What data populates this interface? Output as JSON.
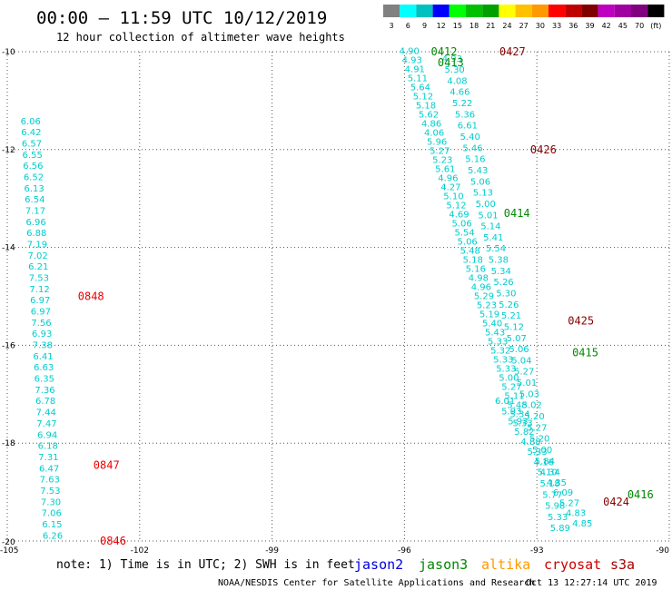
{
  "header": {
    "title": "00:00 – 11:59 UTC 10/12/2019",
    "subtitle": "12 hour collection of altimeter wave heights"
  },
  "colorbar": {
    "colors": [
      "#808080",
      "#00ffff",
      "#00c0c0",
      "#0000ff",
      "#00ff00",
      "#00c000",
      "#00a000",
      "#ffff00",
      "#ffc000",
      "#ff9900",
      "#ff0000",
      "#c00000",
      "#800000",
      "#c000c0",
      "#a000a0",
      "#800080",
      "#000000"
    ],
    "labels": [
      "3",
      "6",
      "9",
      "12",
      "15",
      "18",
      "21",
      "24",
      "27",
      "30",
      "33",
      "36",
      "39",
      "42",
      "45",
      "70",
      "(ft)"
    ]
  },
  "chart_data": {
    "type": "scatter",
    "title": "00:00 – 11:59 UTC 10/12/2019",
    "xlim": [
      -105,
      -90
    ],
    "ylim": [
      -20,
      -10
    ],
    "x_ticks": [
      "-105",
      "-102",
      "-99",
      "-96",
      "-93",
      "-90"
    ],
    "y_ticks": [
      "-10",
      "-12",
      "-14",
      "-16",
      "-18",
      "-20"
    ],
    "grid": true,
    "tracks": [
      {
        "lon_start": -104.7,
        "lon_end": -104.2,
        "values": [
          "6.06",
          "6.42",
          "6.57",
          "6.55",
          "6.56",
          "6.52",
          "6.13",
          "6.54",
          "7.17",
          "6.96",
          "6.88",
          "7.19",
          "7.02",
          "6.21",
          "7.53",
          "7.12",
          "6.97",
          "6.97",
          "7.56",
          "6.93",
          "7.38",
          "6.41",
          "6.63",
          "6.35",
          "7.36",
          "6.78",
          "7.44",
          "7.47",
          "6.94",
          "6.18",
          "7.31",
          "6.47",
          "7.63",
          "7.53",
          "7.30",
          "7.06",
          "6.15",
          "6.26"
        ],
        "lat_start": -11.48,
        "lat_end": -19.95
      },
      {
        "lon_start": -96.12,
        "lon_end": -93.55,
        "values": [
          "4.90",
          "4.93",
          "4.91",
          "5.11",
          "5.64",
          "5.12",
          "5.18",
          "5.62",
          "4.86",
          "4.06",
          "5.96",
          "5.27",
          "5.23",
          "5.61",
          "4.96",
          "4.27",
          "5.10",
          "5.12",
          "4.69",
          "5.06",
          "5.54",
          "5.06",
          "5.48",
          "5.18",
          "5.16",
          "4.98",
          "4.96",
          "5.29",
          "5.23",
          "5.19",
          "5.40",
          "5.43",
          "5.33",
          "5.32",
          "5.33",
          "5.33",
          "5.00",
          "5.27",
          "5.11",
          "5.48",
          "5.34",
          "5.33"
        ],
        "lat_start": -10.05,
        "lat_end": -17.65
      },
      {
        "lon_start": -95.15,
        "lon_end": -92.7,
        "values": [
          "4.93",
          "5.30",
          "4.08",
          "4.66",
          "5.22",
          "5.36",
          "6.61",
          "5.40",
          "5.46",
          "5.16",
          "5.43",
          "5.06",
          "5.13",
          "5.00",
          "5.01",
          "5.14",
          "5.41",
          "5.54",
          "5.38",
          "5.34",
          "5.26",
          "5.30",
          "5.26",
          "5.21",
          "5.12",
          "5.07",
          "5.06",
          "5.04",
          "5.27",
          "5.01",
          "5.03",
          "5.02",
          "5.20",
          "5.27",
          "5.20",
          "5.00",
          "5.84",
          "5.10",
          "5.18",
          "5.77",
          "5.98",
          "5.33",
          "5.89"
        ],
        "lat_start": -10.2,
        "lat_end": -19.8
      },
      {
        "lon_start": -93.95,
        "lon_end": -92.2,
        "values": [
          "6.01",
          "5.93",
          "5.93",
          "5.82",
          "4.88",
          "5.33",
          "4.16",
          "4.34",
          "4.35",
          "6.09",
          "5.27",
          "4.83",
          "4.85"
        ],
        "lat_start": -17.2,
        "lat_end": -19.7
      }
    ],
    "pass_labels": [
      {
        "text": "0412",
        "sat": "jason3",
        "lon": -95.4,
        "lat": -10.0
      },
      {
        "text": "0427",
        "sat": "cryosat",
        "lon": -93.85,
        "lat": -10.0
      },
      {
        "text": "0413",
        "sat": "jason3",
        "lon": -95.25,
        "lat": -10.22
      },
      {
        "text": "0426",
        "sat": "cryosat",
        "lon": -93.15,
        "lat": -12.0
      },
      {
        "text": "0414",
        "sat": "jason3",
        "lon": -93.75,
        "lat": -13.3
      },
      {
        "text": "0848",
        "sat": "s3a",
        "lon": -103.4,
        "lat": -15.0
      },
      {
        "text": "0425",
        "sat": "cryosat",
        "lon": -92.3,
        "lat": -15.5
      },
      {
        "text": "0415",
        "sat": "jason3",
        "lon": -92.2,
        "lat": -16.15
      },
      {
        "text": "0847",
        "sat": "s3a",
        "lon": -103.05,
        "lat": -18.45
      },
      {
        "text": "0416",
        "sat": "jason3",
        "lon": -90.95,
        "lat": -19.05
      },
      {
        "text": "0424",
        "sat": "cryosat",
        "lon": -91.5,
        "lat": -19.2
      },
      {
        "text": "0846",
        "sat": "s3a",
        "lon": -102.9,
        "lat": -20.0
      }
    ]
  },
  "legend": {
    "note": "note: 1) Time is in UTC; 2) SWH is in feet",
    "satellites": [
      {
        "name": "jason2",
        "color": "#0000dd"
      },
      {
        "name": "jason3",
        "color": "#008800"
      },
      {
        "name": "altika",
        "color": "#ff9900"
      },
      {
        "name": "cryosat",
        "color": "#cc0000"
      },
      {
        "name": "s3a",
        "color": "#aa0000"
      }
    ]
  },
  "colors": {
    "jason3": "#008800",
    "cryosat": "#880000",
    "s3a": "#ee0000",
    "value": "#00cccc"
  },
  "footer": {
    "credit": "NOAA/NESDIS Center for Satellite Applications and Research",
    "timestamp": "Oct 13 12:27:14 UTC 2019"
  }
}
